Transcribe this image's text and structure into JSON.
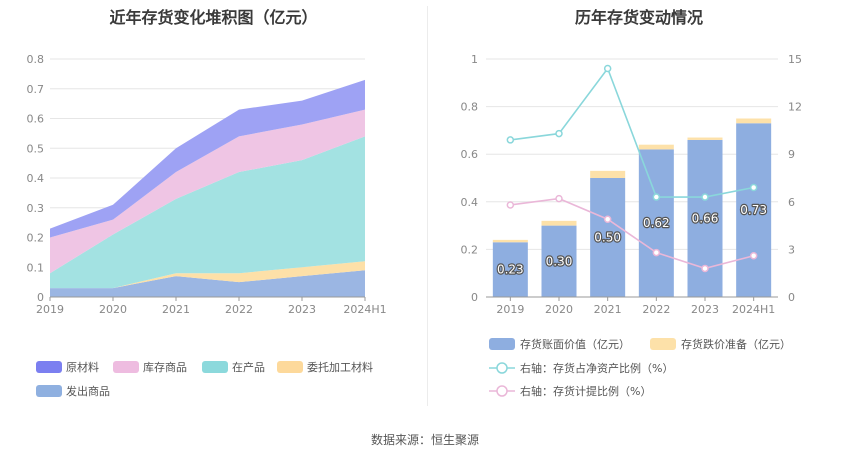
{
  "source_label": "数据来源：恒生聚源",
  "chart_data": [
    {
      "type": "area",
      "stacked": true,
      "title": "近年存货变化堆积图（亿元）",
      "categories": [
        "2019",
        "2020",
        "2021",
        "2022",
        "2023",
        "2024H1"
      ],
      "ylim": [
        0,
        0.8
      ],
      "yticks": [
        "0",
        "0.1",
        "0.2",
        "0.3",
        "0.4",
        "0.5",
        "0.6",
        "0.7",
        "0.8"
      ],
      "grid": true,
      "legend_position": "bottom",
      "series": [
        {
          "name": "发出商品",
          "color": "#9bb6e3",
          "values": [
            0.03,
            0.03,
            0.07,
            0.05,
            0.07,
            0.09
          ]
        },
        {
          "name": "委托加工材料",
          "color": "#fde0a8",
          "values": [
            0.0,
            0.0,
            0.01,
            0.03,
            0.03,
            0.03
          ]
        },
        {
          "name": "在产品",
          "color": "#a3e2e2",
          "values": [
            0.05,
            0.18,
            0.25,
            0.34,
            0.36,
            0.42
          ]
        },
        {
          "name": "库存商品",
          "color": "#efc5e4",
          "values": [
            0.12,
            0.05,
            0.09,
            0.12,
            0.12,
            0.09
          ]
        },
        {
          "name": "原材料",
          "color": "#9ea2f4",
          "values": [
            0.03,
            0.05,
            0.08,
            0.09,
            0.08,
            0.1
          ]
        }
      ],
      "legend_order": [
        "原材料",
        "库存商品",
        "在产品",
        "委托加工材料",
        "发出商品"
      ],
      "legend_swatch_colors": {
        "原材料": "#7b7ff0",
        "库存商品": "#eebce0",
        "在产品": "#8cd9dc",
        "委托加工材料": "#fdd99b",
        "发出商品": "#8fb0e0"
      }
    },
    {
      "type": "bar",
      "stacked": true,
      "title": "历年存货变动情况",
      "categories": [
        "2019",
        "2020",
        "2021",
        "2022",
        "2023",
        "2024H1"
      ],
      "ylim": [
        0,
        1
      ],
      "yticks": [
        "0",
        "0.2",
        "0.4",
        "0.6",
        "0.8",
        "1"
      ],
      "y2lim": [
        0,
        15
      ],
      "y2ticks": [
        "0",
        "3",
        "6",
        "9",
        "12",
        "15"
      ],
      "grid": true,
      "legend_position": "bottom",
      "series": [
        {
          "name": "存货账面价值（亿元）",
          "color": "#8eaee0",
          "values": [
            0.23,
            0.3,
            0.5,
            0.62,
            0.66,
            0.73
          ],
          "labels": [
            "0.23",
            "0.30",
            "0.50",
            "0.62",
            "0.66",
            "0.73"
          ]
        },
        {
          "name": "存货跌价准备（亿元）",
          "color": "#fde1a9",
          "values": [
            0.01,
            0.02,
            0.03,
            0.02,
            0.01,
            0.02
          ]
        }
      ],
      "lines": [
        {
          "name": "右轴：存货占净资产比例（%）",
          "color": "#8ad7db",
          "values": [
            9.9,
            10.3,
            14.4,
            6.3,
            6.3,
            6.9
          ]
        },
        {
          "name": "右轴：存货计提比例（%）",
          "color": "#eab7d8",
          "values": [
            5.8,
            6.2,
            4.9,
            2.8,
            1.8,
            2.6
          ]
        }
      ]
    }
  ]
}
